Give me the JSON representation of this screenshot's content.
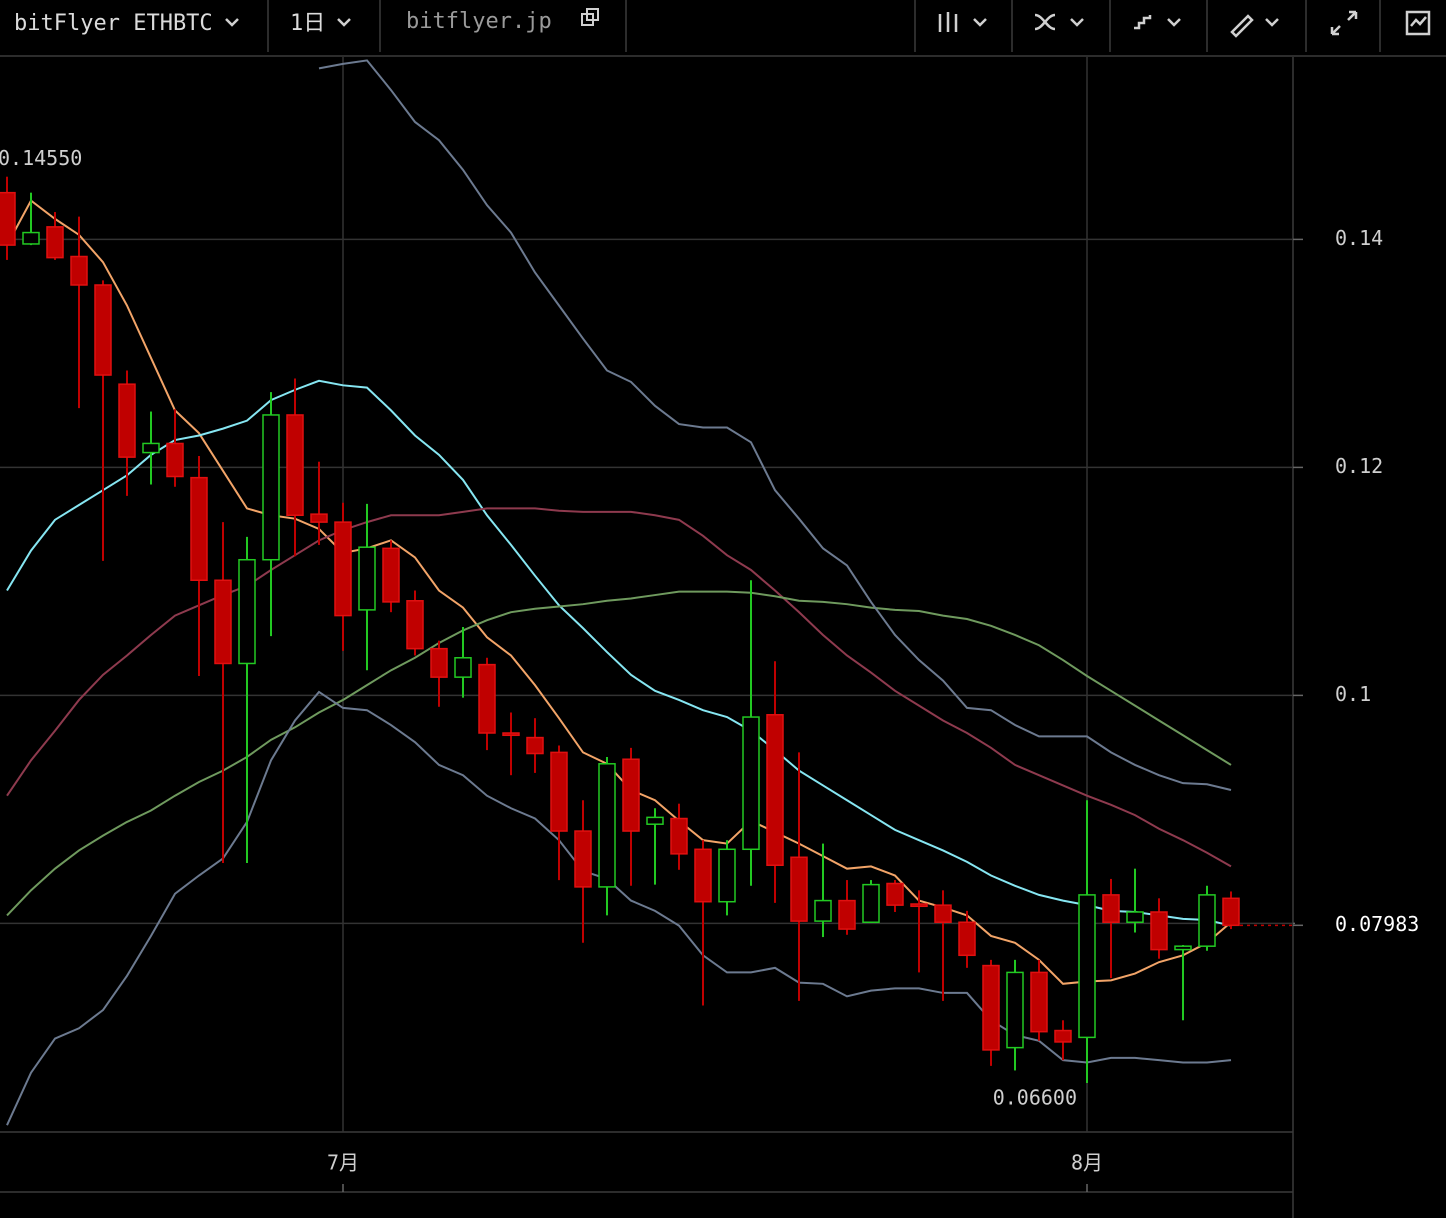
{
  "toolbar": {
    "symbol": "bitFlyer ETHBTC",
    "interval": "1日",
    "source": "bitflyer.jp"
  },
  "chart_data": {
    "type": "candlestick",
    "categories": [
      null,
      null,
      null,
      null,
      null,
      null,
      null,
      null,
      null,
      null,
      null,
      null,
      null,
      null,
      "7月",
      null,
      null,
      null,
      null,
      null,
      null,
      null,
      null,
      null,
      null,
      null,
      null,
      null,
      null,
      null,
      null,
      null,
      null,
      null,
      null,
      null,
      null,
      null,
      null,
      null,
      null,
      null,
      null,
      null,
      null,
      "8月",
      null,
      null,
      null,
      null,
      null,
      null
    ],
    "open": [
      0.1441,
      0.1396,
      0.1411,
      0.1385,
      0.136,
      0.1273,
      0.1213,
      0.1221,
      0.1191,
      0.1101,
      0.1028,
      0.1119,
      0.1246,
      0.1159,
      0.1152,
      0.1075,
      0.1129,
      0.1083,
      0.1041,
      0.1016,
      0.1027,
      0.0967,
      0.0963,
      0.095,
      0.0881,
      0.0832,
      0.0944,
      0.0887,
      0.0892,
      0.0865,
      0.0819,
      0.0865,
      0.0983,
      0.0858,
      0.0802,
      0.082,
      0.0801,
      0.0835,
      0.0817,
      0.0816,
      0.0801,
      0.0763,
      0.0691,
      0.0757,
      0.0706,
      0.07,
      0.0825,
      0.0801,
      0.081,
      0.0777,
      0.078,
      0.0822
    ],
    "high": [
      0.1455,
      0.1441,
      0.1424,
      0.142,
      0.1364,
      0.1285,
      0.1249,
      0.1251,
      0.121,
      0.1152,
      0.1139,
      0.1266,
      0.1278,
      0.1205,
      0.1169,
      0.1168,
      0.1136,
      0.1092,
      0.1048,
      0.106,
      0.1033,
      0.0985,
      0.098,
      0.0956,
      0.0908,
      0.0946,
      0.0954,
      0.0901,
      0.0905,
      0.0873,
      0.0873,
      0.1101,
      0.103,
      0.095,
      0.087,
      0.0838,
      0.0838,
      0.0838,
      0.0829,
      0.0829,
      0.0811,
      0.0768,
      0.0768,
      0.0768,
      0.0715,
      0.0908,
      0.0839,
      0.0848,
      0.0822,
      0.0781,
      0.0833,
      0.0828
    ],
    "low": [
      0.1382,
      0.1395,
      0.1382,
      0.1252,
      0.1118,
      0.1175,
      0.1185,
      0.1183,
      0.1017,
      0.0853,
      0.0853,
      0.1052,
      0.1122,
      0.1132,
      0.1039,
      0.1022,
      0.1073,
      0.1035,
      0.099,
      0.0998,
      0.0952,
      0.093,
      0.0932,
      0.0838,
      0.0783,
      0.0807,
      0.0833,
      0.0834,
      0.0847,
      0.0728,
      0.0807,
      0.0833,
      0.0818,
      0.0732,
      0.0788,
      0.079,
      0.0801,
      0.081,
      0.0757,
      0.0732,
      0.0761,
      0.0675,
      0.0671,
      0.0697,
      0.068,
      0.066,
      0.0752,
      0.0792,
      0.0769,
      0.0715,
      0.0776,
      0.0795
    ],
    "close": [
      0.1395,
      0.1406,
      0.1384,
      0.136,
      0.1281,
      0.1209,
      0.1221,
      0.1192,
      0.1101,
      0.1028,
      0.1119,
      0.1246,
      0.1158,
      0.1152,
      0.107,
      0.113,
      0.1082,
      0.1041,
      0.1016,
      0.1033,
      0.0967,
      0.0965,
      0.0949,
      0.0881,
      0.0832,
      0.094,
      0.0881,
      0.0893,
      0.0861,
      0.0819,
      0.0865,
      0.0981,
      0.0851,
      0.0802,
      0.082,
      0.0795,
      0.0834,
      0.0816,
      0.0815,
      0.0801,
      0.0772,
      0.0689,
      0.0757,
      0.0705,
      0.0696,
      0.0825,
      0.0801,
      0.081,
      0.0777,
      0.078,
      0.0825,
      0.07983
    ],
    "up_color": "#22c922",
    "down_color": "#c00000",
    "lines": [
      {
        "color": "#f2a468",
        "values": [
          0.1395,
          0.1434,
          0.1418,
          0.1404,
          0.138,
          0.1342,
          0.1296,
          0.125,
          0.123,
          0.1197,
          0.1164,
          0.1158,
          0.1155,
          0.1146,
          0.1125,
          0.1129,
          0.1136,
          0.1121,
          0.1092,
          0.1077,
          0.1051,
          0.1035,
          0.1009,
          0.098,
          0.095,
          0.094,
          0.0917,
          0.0908,
          0.089,
          0.0873,
          0.087,
          0.089,
          0.088,
          0.087,
          0.0859,
          0.0848,
          0.085,
          0.0842,
          0.082,
          0.0814,
          0.0807,
          0.0789,
          0.0783,
          0.0768,
          0.0747,
          0.0749,
          0.075,
          0.0756,
          0.0766,
          0.0772,
          0.0783,
          0.0801
        ]
      },
      {
        "color": "#86e6f2",
        "values": [
          0.1092,
          0.1127,
          0.1154,
          0.1167,
          0.118,
          0.1193,
          0.1211,
          0.1224,
          0.1228,
          0.1234,
          0.1241,
          0.1259,
          0.1268,
          0.1276,
          0.1272,
          0.127,
          0.125,
          0.1228,
          0.1211,
          0.1189,
          0.1158,
          0.1132,
          0.1105,
          0.1079,
          0.1059,
          0.1038,
          0.1018,
          0.1004,
          0.0996,
          0.0987,
          0.0981,
          0.0969,
          0.0952,
          0.0934,
          0.0921,
          0.0908,
          0.0895,
          0.0882,
          0.0873,
          0.0864,
          0.0854,
          0.0842,
          0.0833,
          0.0825,
          0.082,
          0.0816,
          0.0811,
          0.081,
          0.0807,
          0.0804,
          0.0803,
          0.0798
        ]
      },
      {
        "color": "#8e3a4e",
        "values": [
          0.0912,
          0.0943,
          0.0969,
          0.0996,
          0.1018,
          0.1035,
          0.1053,
          0.107,
          0.1079,
          0.1088,
          0.1096,
          0.111,
          0.1123,
          0.1136,
          0.1145,
          0.1152,
          0.1158,
          0.1158,
          0.1158,
          0.1161,
          0.1164,
          0.1164,
          0.1164,
          0.1162,
          0.1161,
          0.1161,
          0.1161,
          0.1158,
          0.1154,
          0.114,
          0.1123,
          0.111,
          0.1092,
          0.1073,
          0.1053,
          0.1035,
          0.102,
          0.1004,
          0.0991,
          0.0978,
          0.0967,
          0.0954,
          0.0939,
          0.093,
          0.0921,
          0.0912,
          0.0904,
          0.0895,
          0.0883,
          0.0873,
          0.0862,
          0.085
        ]
      },
      {
        "color": "#6f9a5e",
        "values": [
          0.0807,
          0.0829,
          0.0848,
          0.0864,
          0.0877,
          0.0889,
          0.0899,
          0.0912,
          0.0924,
          0.0934,
          0.0946,
          0.0961,
          0.0972,
          0.0985,
          0.0996,
          0.1009,
          0.1022,
          0.1033,
          0.1046,
          0.1057,
          0.1066,
          0.1073,
          0.1076,
          0.1078,
          0.108,
          0.1083,
          0.1085,
          0.1088,
          0.1091,
          0.1091,
          0.1091,
          0.109,
          0.1087,
          0.1083,
          0.1082,
          0.108,
          0.1077,
          0.1075,
          0.1074,
          0.107,
          0.1067,
          0.1061,
          0.1053,
          0.1044,
          0.1031,
          0.1017,
          0.1004,
          0.0991,
          0.0978,
          0.0965,
          0.0952,
          0.0939
        ]
      },
      {
        "color": "#6c7a90",
        "values": [
          null,
          null,
          null,
          null,
          null,
          null,
          null,
          null,
          null,
          null,
          null,
          null,
          null,
          0.155,
          0.1554,
          0.1557,
          0.1531,
          0.1503,
          0.1487,
          0.1461,
          0.143,
          0.1406,
          0.1371,
          0.1342,
          0.1313,
          0.1285,
          0.1275,
          0.1254,
          0.1238,
          0.1235,
          0.1235,
          0.1222,
          0.118,
          0.1155,
          0.1129,
          0.1114,
          0.1082,
          0.1053,
          0.1031,
          0.1013,
          0.0989,
          0.0987,
          0.0974,
          0.0964,
          0.0964,
          0.0964,
          0.095,
          0.0939,
          0.093,
          0.0923,
          0.0922,
          0.0917
        ]
      },
      {
        "color": "#6c7a90",
        "values": [
          0.0623,
          0.0669,
          0.0699,
          0.0708,
          0.0724,
          0.0754,
          0.0789,
          0.0826,
          0.0842,
          0.0857,
          0.0889,
          0.0943,
          0.0978,
          0.1003,
          0.0989,
          0.0987,
          0.0974,
          0.0959,
          0.0939,
          0.093,
          0.0912,
          0.0901,
          0.0892,
          0.0873,
          0.0846,
          0.0839,
          0.082,
          0.0811,
          0.0798,
          0.0772,
          0.0757,
          0.0757,
          0.0761,
          0.0748,
          0.0747,
          0.0736,
          0.0741,
          0.0743,
          0.0743,
          0.0739,
          0.0739,
          0.0715,
          0.0702,
          0.0697,
          0.068,
          0.0678,
          0.0682,
          0.0682,
          0.068,
          0.0678,
          0.0678,
          0.068
        ]
      }
    ],
    "annotations": [
      {
        "value": 0.1455,
        "label": "0.14550"
      },
      {
        "value": 0.066,
        "label": "0.06600"
      }
    ],
    "price_line": {
      "value": 0.07983,
      "label": "0.07983",
      "color": "#c00000"
    },
    "ylim": [
      0.0617,
      0.156
    ],
    "yticks": [
      0.08,
      0.1,
      0.12,
      0.14
    ],
    "grid": true
  }
}
